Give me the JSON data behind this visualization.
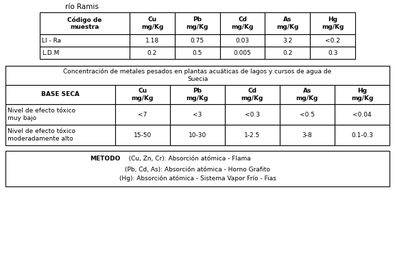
{
  "title": "río Ramis",
  "table1_headers": [
    "Código de\nmuestra",
    "Cu\nmg/Kg",
    "Pb\nmg/Kg",
    "Cd\nmg/Kg",
    "As\nmg/Kg",
    "Hg\nmg/Kg"
  ],
  "table1_rows": [
    [
      "Ll - Ra",
      "1.18",
      "0.75",
      "0.03",
      "3.2",
      "<0.2"
    ],
    [
      "L.D.M",
      "0.2",
      "0.5",
      "0.005",
      "0.2",
      "0.3"
    ]
  ],
  "table2_title": "Concentración de metales pesados en plantas acuáticas de lagos y cursos de agua de\nSuecia",
  "table2_headers": [
    "BASE SECA",
    "Cu\nmg/Kg",
    "Pb\nmg/Kg",
    "Cd\nmg/Kg",
    "As\nmg/Kg",
    "Hg\nmg/Kg"
  ],
  "table2_rows": [
    [
      "Nivel de efecto tóxico\nmuy bajo",
      "<7",
      "<3",
      "<0.3",
      "<0.5",
      "<0.04"
    ],
    [
      "Nivel de efecto tóxico\nmoderadamente alto",
      "15-50",
      "10-30",
      "1-2.5",
      "3-8",
      "0.1-0.3"
    ]
  ],
  "metodo_bold": "METODO",
  "metodo_line1": "   (Cu, Zn, Cr): Absorción atómica - Flama",
  "metodo_line2": "(Pb, Cd, As): Absorción atómica - Horno Grafito",
  "metodo_line3": "(Hg): Absorción atómica - Sistema Vapor Frío - Fias",
  "bg": "#ffffff",
  "fg": "#000000",
  "lw": 0.8,
  "fs_title": 7.5,
  "fs_table": 6.5,
  "fs_metodo": 6.5
}
